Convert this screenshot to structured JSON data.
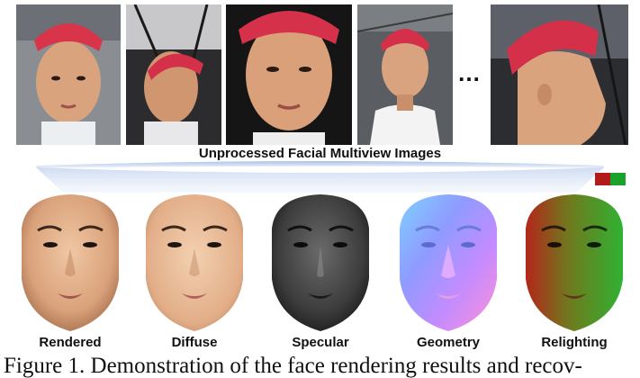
{
  "top_caption": "Unprocessed Facial Multiview Images",
  "ellipsis": "…",
  "photos": [
    {
      "label": "multiview-photo-1",
      "description": "frontal"
    },
    {
      "label": "multiview-photo-2",
      "description": "looking up"
    },
    {
      "label": "multiview-photo-3",
      "description": "close front"
    },
    {
      "label": "multiview-photo-4",
      "description": "frontal wide"
    },
    {
      "label": "multiview-photo-5",
      "description": "profile"
    }
  ],
  "faces": [
    {
      "label": "Rendered"
    },
    {
      "label": "Diffuse"
    },
    {
      "label": "Specular"
    },
    {
      "label": "Geometry"
    },
    {
      "label": "Relighting"
    }
  ],
  "light_swatches": {
    "colors": [
      "#b31b1b",
      "#1aa32a"
    ]
  },
  "figure_caption": "Figure 1. Demonstration of the face rendering results and recov-"
}
